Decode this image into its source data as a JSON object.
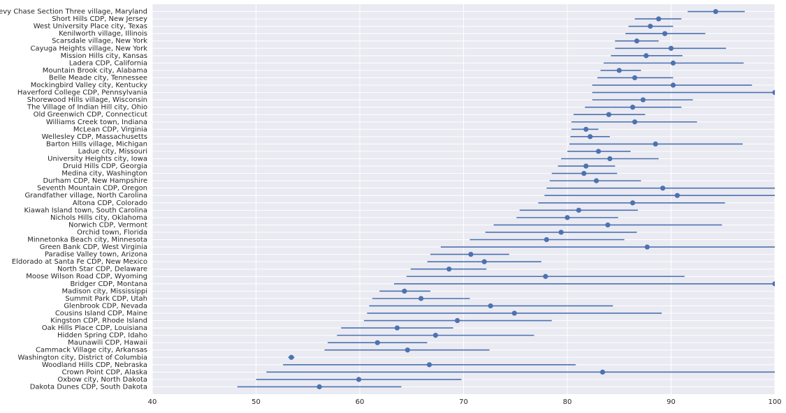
{
  "chart_data": {
    "type": "errorbar",
    "categories": [
      "Chevy Chase Section Three village, Maryland",
      "Short Hills CDP, New Jersey",
      "West University Place city, Texas",
      "Kenilworth village, Illinois",
      "Scarsdale village, New York",
      "Cayuga Heights village, New York",
      "Mission Hills city, Kansas",
      "Ladera CDP, California",
      "Mountain Brook city, Alabama",
      "Belle Meade city, Tennessee",
      "Mockingbird Valley city, Kentucky",
      "Haverford College CDP, Pennsylvania",
      "Shorewood Hills village, Wisconsin",
      "The Village of Indian Hill city, Ohio",
      "Old Greenwich CDP, Connecticut",
      "Williams Creek town, Indiana",
      "McLean CDP, Virginia",
      "Wellesley CDP, Massachusetts",
      "Barton Hills village, Michigan",
      "Ladue city, Missouri",
      "University Heights city, Iowa",
      "Druid Hills CDP, Georgia",
      "Medina city, Washington",
      "Durham CDP, New Hampshire",
      "Seventh Mountain CDP, Oregon",
      "Grandfather village, North Carolina",
      "Altona CDP, Colorado",
      "Kiawah Island town, South Carolina",
      "Nichols Hills city, Oklahoma",
      "Norwich CDP, Vermont",
      "Orchid town, Florida",
      "Minnetonka Beach city, Minnesota",
      "Green Bank CDP, West Virginia",
      "Paradise Valley town, Arizona",
      "Eldorado at Santa Fe CDP, New Mexico",
      "North Star CDP, Delaware",
      "Moose Wilson Road CDP, Wyoming",
      "Bridger CDP, Montana",
      "Madison city, Mississippi",
      "Summit Park CDP, Utah",
      "Glenbrook CDP, Nevada",
      "Cousins Island CDP, Maine",
      "Kingston CDP, Rhode Island",
      "Oak Hills Place CDP, Louisiana",
      "Hidden Spring CDP, Idaho",
      "Maunawili CDP, Hawaii",
      "Cammack Village city, Arkansas",
      "Washington city, District of Columbia",
      "Woodland Hills CDP, Nebraska",
      "Crown Point CDP, Alaska",
      "Oxbow city, North Dakota",
      "Dakota Dunes CDP, South Dakota"
    ],
    "series": [
      {
        "color": "#4c72b0",
        "values": [
          94.3,
          88.8,
          88.0,
          89.4,
          86.7,
          90.0,
          87.6,
          90.2,
          85.0,
          86.5,
          90.2,
          100,
          87.3,
          86.3,
          84.0,
          86.5,
          81.8,
          82.2,
          88.5,
          83.0,
          84.1,
          81.8,
          81.6,
          82.8,
          89.2,
          90.6,
          86.3,
          81.1,
          80.0,
          83.9,
          79.4,
          78.0,
          87.7,
          70.7,
          72.0,
          68.6,
          77.9,
          100,
          64.3,
          65.9,
          72.6,
          74.9,
          69.4,
          63.6,
          67.3,
          61.7,
          64.6,
          53.4,
          66.7,
          83.4,
          59.9,
          56.1
        ],
        "low": [
          91.6,
          86.5,
          85.9,
          85.6,
          84.6,
          84.6,
          84.2,
          83.5,
          83.2,
          82.9,
          82.4,
          82.4,
          82.4,
          81.7,
          80.6,
          80.4,
          80.4,
          80.3,
          80.2,
          80.0,
          79.4,
          79.1,
          78.5,
          78.3,
          78.0,
          77.8,
          77.2,
          75.4,
          75.1,
          72.9,
          72.1,
          70.6,
          67.8,
          66.8,
          66.5,
          64.9,
          64.5,
          63.3,
          61.9,
          61.2,
          60.9,
          60.7,
          60.4,
          58.2,
          57.8,
          56.9,
          56.6,
          53.1,
          52.6,
          51.0,
          50.0,
          48.2
        ],
        "high": [
          97.1,
          91.0,
          90.2,
          93.3,
          88.8,
          95.3,
          91.1,
          97.0,
          87.1,
          90.2,
          97.8,
          104,
          92.1,
          91.0,
          87.5,
          92.5,
          83.0,
          84.1,
          96.9,
          86.1,
          88.8,
          84.6,
          84.8,
          87.1,
          104,
          104,
          95.2,
          86.8,
          84.9,
          94.9,
          86.7,
          85.5,
          107,
          74.4,
          77.5,
          72.2,
          91.3,
          115,
          66.8,
          70.6,
          84.4,
          89.1,
          78.5,
          69.0,
          76.8,
          66.5,
          72.5,
          53.7,
          80.8,
          115,
          69.8,
          64.0
        ]
      }
    ],
    "xlim": [
      40,
      100
    ],
    "xticks": [
      40,
      50,
      60,
      70,
      80,
      90,
      100
    ],
    "grid": true
  }
}
